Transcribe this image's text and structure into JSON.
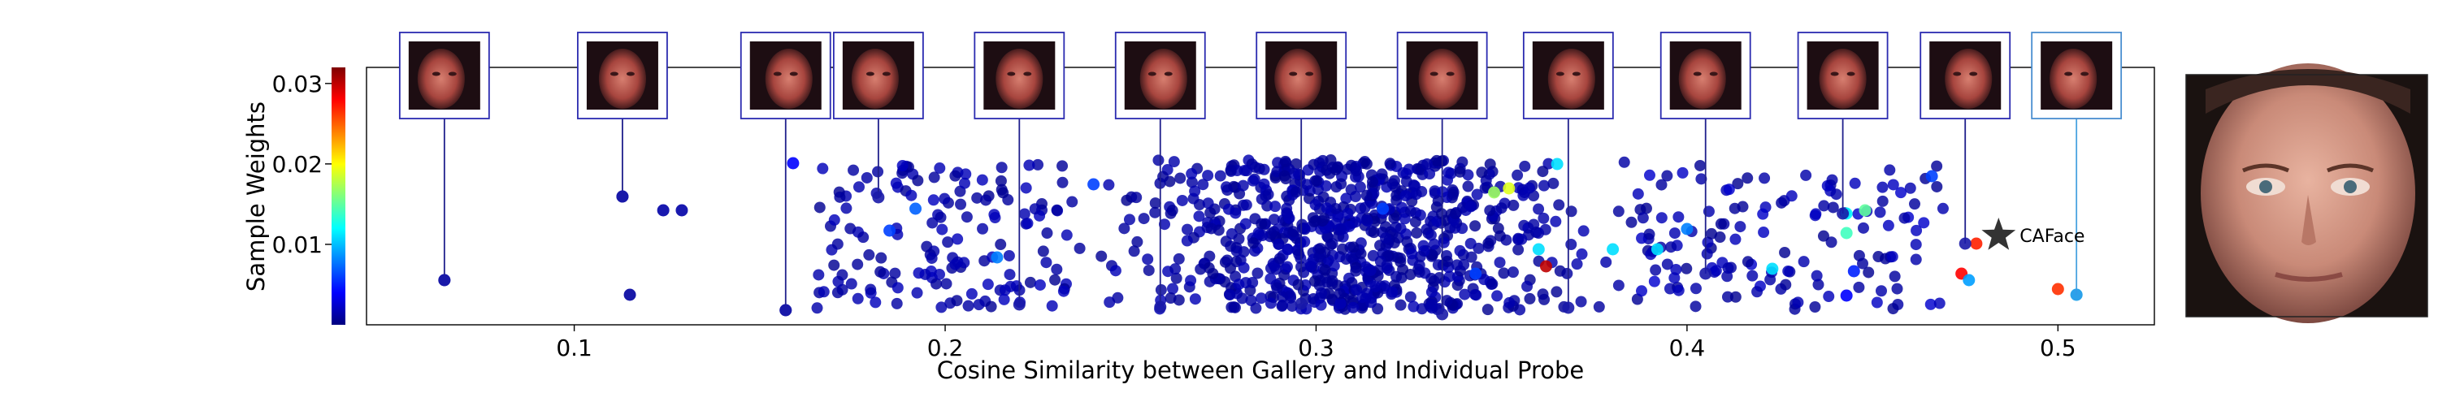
{
  "chart_data": {
    "type": "scatter",
    "title": "",
    "xlabel": "Cosine Similarity between Gallery and Individual Probe",
    "ylabel": "Sample Weights",
    "xlim": [
      0.044,
      0.526
    ],
    "ylim": [
      -0.0003,
      0.0314
    ],
    "x_ticks": [
      0.1,
      0.2,
      0.3,
      0.4,
      0.5
    ],
    "x_tick_labels": [
      "0.1",
      "0.2",
      "0.3",
      "0.4",
      "0.5"
    ],
    "colorbar": {
      "colormap": "jet",
      "range": [
        0.0,
        0.032
      ],
      "ticks": [
        0.01,
        0.02,
        0.03
      ],
      "tick_labels": [
        "0.01",
        "0.02",
        "0.03"
      ]
    },
    "grid": false,
    "cloud_description": "Approximately 900 probe samples; dense cluster between x 0.25 and 0.38 with sample weights mostly 0.001-0.020; weights color-coded with jet colormap (mostly dark blue, a few cyan/orange outliers).",
    "points": [
      {
        "x": 0.065,
        "y": 0.0052,
        "w": 0.001
      },
      {
        "x": 0.113,
        "y": 0.0155,
        "w": 0.0011
      },
      {
        "x": 0.115,
        "y": 0.0034,
        "w": 0.001
      },
      {
        "x": 0.124,
        "y": 0.0138,
        "w": 0.0012
      },
      {
        "x": 0.129,
        "y": 0.0138,
        "w": 0.0012
      },
      {
        "x": 0.157,
        "y": 0.0015,
        "w": 0.001
      },
      {
        "x": 0.159,
        "y": 0.0196,
        "w": 0.004
      },
      {
        "x": 0.185,
        "y": 0.0113,
        "w": 0.006
      },
      {
        "x": 0.192,
        "y": 0.014,
        "w": 0.007
      },
      {
        "x": 0.214,
        "y": 0.008,
        "w": 0.008
      },
      {
        "x": 0.24,
        "y": 0.017,
        "w": 0.006
      },
      {
        "x": 0.318,
        "y": 0.014,
        "w": 0.006
      },
      {
        "x": 0.343,
        "y": 0.006,
        "w": 0.006
      },
      {
        "x": 0.348,
        "y": 0.016,
        "w": 0.017
      },
      {
        "x": 0.352,
        "y": 0.0165,
        "w": 0.019
      },
      {
        "x": 0.362,
        "y": 0.0069,
        "w": 0.03
      },
      {
        "x": 0.36,
        "y": 0.009,
        "w": 0.011
      },
      {
        "x": 0.365,
        "y": 0.0195,
        "w": 0.011
      },
      {
        "x": 0.38,
        "y": 0.009,
        "w": 0.011
      },
      {
        "x": 0.392,
        "y": 0.009,
        "w": 0.011
      },
      {
        "x": 0.4,
        "y": 0.0115,
        "w": 0.008
      },
      {
        "x": 0.423,
        "y": 0.0066,
        "w": 0.011
      },
      {
        "x": 0.443,
        "y": 0.0134,
        "w": 0.012
      },
      {
        "x": 0.443,
        "y": 0.011,
        "w": 0.014
      },
      {
        "x": 0.448,
        "y": 0.0138,
        "w": 0.015
      },
      {
        "x": 0.443,
        "y": 0.0033,
        "w": 0.004
      },
      {
        "x": 0.445,
        "y": 0.0063,
        "w": 0.005
      },
      {
        "x": 0.466,
        "y": 0.018,
        "w": 0.006
      },
      {
        "x": 0.474,
        "y": 0.006,
        "w": 0.028
      },
      {
        "x": 0.476,
        "y": 0.0052,
        "w": 0.009
      },
      {
        "x": 0.478,
        "y": 0.0097,
        "w": 0.027
      },
      {
        "x": 0.5,
        "y": 0.0041,
        "w": 0.0265
      },
      {
        "x": 0.505,
        "y": 0.0034,
        "w": 0.011
      }
    ],
    "stems_x": [
      0.065,
      0.113,
      0.157,
      0.182,
      0.22,
      0.258,
      0.296,
      0.334,
      0.368,
      0.405,
      0.442,
      0.475,
      0.505
    ],
    "stem_points": [
      {
        "x": 0.065,
        "y": 0.0052
      },
      {
        "x": 0.113,
        "y": 0.0155
      },
      {
        "x": 0.157,
        "y": 0.0015
      },
      {
        "x": 0.182,
        "y": 0.0154
      },
      {
        "x": 0.22,
        "y": 0.0022
      },
      {
        "x": 0.258,
        "y": 0.0019
      },
      {
        "x": 0.296,
        "y": 0.0023
      },
      {
        "x": 0.334,
        "y": 0.001
      },
      {
        "x": 0.368,
        "y": 0.0018
      },
      {
        "x": 0.405,
        "y": 0.006
      },
      {
        "x": 0.442,
        "y": 0.0134
      },
      {
        "x": 0.475,
        "y": 0.0097
      },
      {
        "x": 0.505,
        "y": 0.0034
      }
    ],
    "caface_marker": {
      "label": "CAFace",
      "x": 0.484,
      "y": 0.0107,
      "marker": "star",
      "color": "#333333"
    }
  },
  "colors": {
    "face_frame": "#2b2bb0",
    "face_frame_last": "#4a8ed0",
    "stem_line": "#20208c",
    "last_stem_line": "#4aa3e0",
    "star": "#333333",
    "axis": "#000000"
  },
  "images": {
    "face_thumbnails": "13 cropped low-resolution probe face images shown along the top",
    "gallery_face": "Gallery face image on the right"
  }
}
